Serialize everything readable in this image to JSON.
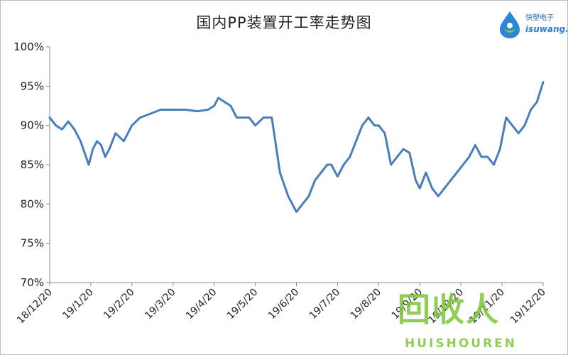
{
  "chart_data": {
    "type": "line",
    "title": "国内PP装置开工率走势图",
    "xlabel": "",
    "ylabel": "",
    "ylim": [
      0.7,
      1.0
    ],
    "yticks": [
      "70%",
      "75%",
      "80%",
      "85%",
      "90%",
      "95%",
      "100%"
    ],
    "xticks": [
      "18/12/20",
      "19/1/20",
      "19/2/20",
      "19/3/20",
      "19/4/20",
      "19/5/20",
      "19/6/20",
      "19/7/20",
      "19/8/20",
      "19/9/20",
      "19/10/20",
      "19/11/20",
      "19/12/20"
    ],
    "grid": false,
    "legend": "none",
    "line_color": "#4a7ebb",
    "series": [
      {
        "x": [
          0,
          0.15,
          0.3,
          0.45,
          0.6,
          0.75,
          0.85,
          0.95,
          1.05,
          1.15,
          1.25,
          1.35,
          1.45,
          1.6,
          1.8,
          2.0,
          2.2,
          2.45,
          2.7,
          3.0,
          3.3,
          3.6,
          3.85,
          4.0,
          4.1,
          4.25,
          4.4,
          4.55,
          4.65,
          4.75,
          4.85,
          5.0,
          5.2,
          5.4,
          5.6,
          5.8,
          6.0,
          6.15,
          6.3,
          6.45,
          6.6,
          6.75,
          6.85,
          7.0,
          7.15,
          7.3,
          7.45,
          7.6,
          7.75,
          7.9,
          8.0,
          8.15,
          8.3,
          8.45,
          8.6,
          8.75,
          8.9,
          9.0,
          9.15,
          9.3,
          9.45,
          9.6,
          9.75,
          9.9,
          10.05,
          10.2,
          10.35,
          10.5,
          10.65,
          10.8,
          10.95,
          11.1,
          11.25,
          11.4,
          11.55,
          11.7,
          11.85,
          12.0
        ],
        "y": [
          0.91,
          0.9,
          0.895,
          0.905,
          0.895,
          0.88,
          0.865,
          0.85,
          0.87,
          0.88,
          0.875,
          0.86,
          0.87,
          0.89,
          0.88,
          0.9,
          0.91,
          0.915,
          0.92,
          0.92,
          0.92,
          0.918,
          0.92,
          0.925,
          0.935,
          0.93,
          0.925,
          0.91,
          0.91,
          0.91,
          0.91,
          0.9,
          0.91,
          0.91,
          0.84,
          0.81,
          0.79,
          0.8,
          0.81,
          0.83,
          0.84,
          0.85,
          0.85,
          0.835,
          0.85,
          0.86,
          0.88,
          0.9,
          0.91,
          0.9,
          0.9,
          0.89,
          0.85,
          0.86,
          0.87,
          0.865,
          0.83,
          0.82,
          0.84,
          0.82,
          0.81,
          0.82,
          0.83,
          0.84,
          0.85,
          0.86,
          0.875,
          0.86,
          0.86,
          0.85,
          0.87,
          0.91,
          0.9,
          0.89,
          0.9,
          0.92,
          0.93,
          0.955
        ]
      }
    ]
  },
  "logo": {
    "name": "快塑电子",
    "domain": "isuwang.c"
  },
  "watermark": {
    "main": "回收人",
    "sub": "HUISHOUREN"
  }
}
